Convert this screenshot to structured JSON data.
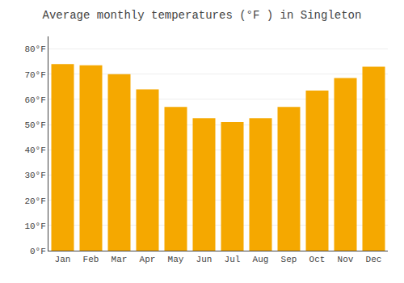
{
  "chart_data": {
    "type": "bar",
    "title": "Average monthly temperatures (°F ) in Singleton",
    "categories": [
      "Jan",
      "Feb",
      "Mar",
      "Apr",
      "May",
      "Jun",
      "Jul",
      "Aug",
      "Sep",
      "Oct",
      "Nov",
      "Dec"
    ],
    "values": [
      74.0,
      73.5,
      70.0,
      64.0,
      57.0,
      52.5,
      51.0,
      52.5,
      57.0,
      63.5,
      68.5,
      73.0
    ],
    "color": "#F5A800",
    "ylim": [
      0,
      85
    ],
    "yticks": [
      {
        "value": 0,
        "label": "0°F"
      },
      {
        "value": 10,
        "label": "10°F"
      },
      {
        "value": 20,
        "label": "20°F"
      },
      {
        "value": 30,
        "label": "30°F"
      },
      {
        "value": 40,
        "label": "40°F"
      },
      {
        "value": 50,
        "label": "50°F"
      },
      {
        "value": 60,
        "label": "60°F"
      },
      {
        "value": 70,
        "label": "70°F"
      },
      {
        "value": 80,
        "label": "80°F"
      }
    ],
    "grid": true
  }
}
